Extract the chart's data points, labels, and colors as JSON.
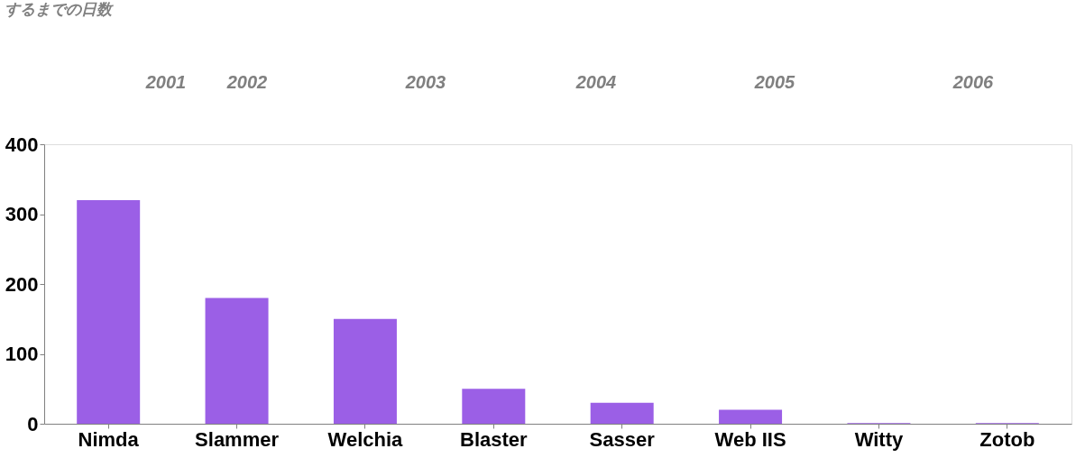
{
  "chart_data": {
    "type": "bar",
    "title": "するまでの日数",
    "categories": [
      "Nimda",
      "Slammer",
      "Welchia",
      "Blaster",
      "Sasser",
      "Web IIS",
      "Witty",
      "Zotob"
    ],
    "values": [
      320,
      180,
      150,
      50,
      30,
      20,
      1,
      1
    ],
    "color": "#9b5fe6",
    "ylim": [
      0,
      400
    ],
    "yticks": [
      0,
      100,
      200,
      300,
      400
    ],
    "grid": false,
    "annotations": [
      "2001",
      "2002",
      "2003",
      "2004",
      "2005",
      "2006"
    ]
  }
}
